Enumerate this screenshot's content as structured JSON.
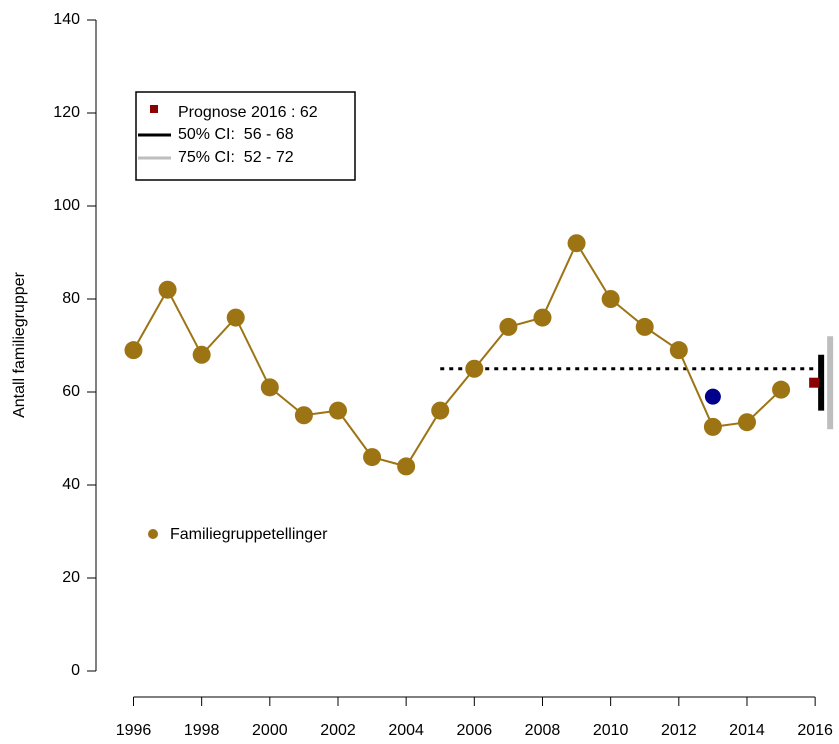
{
  "chart_data": {
    "type": "line",
    "y_label": "Antall familiegrupper",
    "x": [
      1996,
      1997,
      1998,
      1999,
      2000,
      2001,
      2002,
      2003,
      2004,
      2005,
      2006,
      2007,
      2008,
      2009,
      2010,
      2011,
      2012,
      2013,
      2014,
      2015
    ],
    "series": [
      {
        "name": "Familiegruppetellinger",
        "color": "#9c7414",
        "values": [
          69,
          82,
          68,
          76,
          61,
          55,
          56,
          46,
          44,
          56,
          65,
          74,
          76,
          92,
          80,
          74,
          69,
          52.5,
          53.5,
          60.5
        ]
      }
    ],
    "highlight": {
      "x": 2013,
      "value": 59,
      "color": "#00008b"
    },
    "reference_line": {
      "x": [
        2005,
        2016
      ],
      "value": 65,
      "color": "#000000"
    },
    "forecast": {
      "x": 2016,
      "value": 62,
      "color": "#8b0000",
      "label": "Prognose 2016 : 62",
      "intervals": [
        {
          "label": "50% CI:  56 - 68",
          "low": 56,
          "high": 68,
          "color": "#000000"
        },
        {
          "label": "75% CI:  52 - 72",
          "low": 52,
          "high": 72,
          "color": "#bebebe"
        }
      ]
    },
    "xlim": [
      1994.9,
      2016.7
    ],
    "xticks": [
      1996,
      1998,
      2000,
      2002,
      2004,
      2006,
      2008,
      2010,
      2012,
      2014,
      2016
    ],
    "ylim": [
      0,
      140
    ],
    "yticks": [
      0,
      20,
      40,
      60,
      80,
      100,
      120,
      140
    ]
  }
}
